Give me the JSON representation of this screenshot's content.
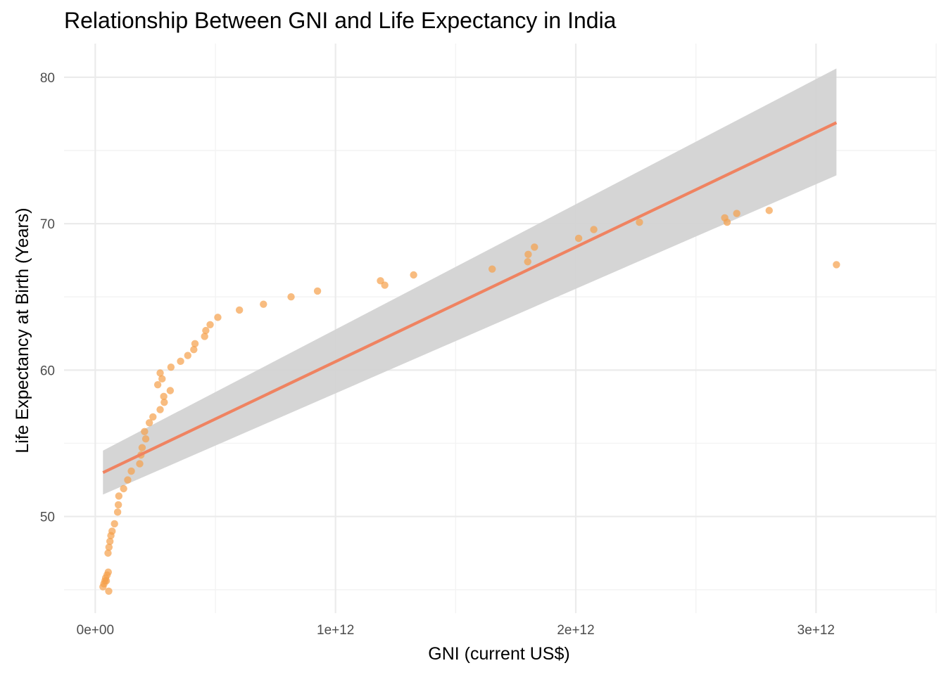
{
  "chart_data": {
    "type": "scatter",
    "title": "Relationship Between GNI and Life Expectancy in India",
    "xlabel": "GNI (current US$)",
    "ylabel": "Life Expectancy at Birth (Years)",
    "xlim": [
      -130000000000.0,
      3500000000000.0
    ],
    "ylim": [
      43.4,
      82.3
    ],
    "x_ticks": [
      {
        "value": 0,
        "label": "0e+00"
      },
      {
        "value": 1000000000000.0,
        "label": "1e+12"
      },
      {
        "value": 2000000000000.0,
        "label": "2e+12"
      },
      {
        "value": 3000000000000.0,
        "label": "3e+12"
      }
    ],
    "x_minor": [
      500000000000.0,
      1500000000000.0,
      2500000000000.0,
      3500000000000.0
    ],
    "y_ticks": [
      {
        "value": 50,
        "label": "50"
      },
      {
        "value": 60,
        "label": "60"
      },
      {
        "value": 70,
        "label": "70"
      },
      {
        "value": 80,
        "label": "80"
      }
    ],
    "y_minor": [
      45,
      55,
      65,
      75
    ],
    "grid": true,
    "colors": {
      "point": "#f5a04a",
      "trend": "#ef8361",
      "band": "#d3d3d3"
    },
    "points": [
      {
        "x": 32000000000.0,
        "y": 45.2
      },
      {
        "x": 36000000000.0,
        "y": 45.4
      },
      {
        "x": 40000000000.0,
        "y": 45.6
      },
      {
        "x": 43000000000.0,
        "y": 45.8
      },
      {
        "x": 46000000000.0,
        "y": 45.6
      },
      {
        "x": 49000000000.0,
        "y": 46.0
      },
      {
        "x": 53000000000.0,
        "y": 47.5
      },
      {
        "x": 54000000000.0,
        "y": 46.2
      },
      {
        "x": 56000000000.0,
        "y": 44.9
      },
      {
        "x": 57000000000.0,
        "y": 47.9
      },
      {
        "x": 61000000000.0,
        "y": 48.3
      },
      {
        "x": 65000000000.0,
        "y": 48.7
      },
      {
        "x": 70000000000.0,
        "y": 49.0
      },
      {
        "x": 80000000000.0,
        "y": 49.5
      },
      {
        "x": 93000000000.0,
        "y": 50.3
      },
      {
        "x": 96000000000.0,
        "y": 50.8
      },
      {
        "x": 98000000000.0,
        "y": 51.4
      },
      {
        "x": 118000000000.0,
        "y": 51.9
      },
      {
        "x": 135000000000.0,
        "y": 52.5
      },
      {
        "x": 150000000000.0,
        "y": 53.1
      },
      {
        "x": 185000000000.0,
        "y": 53.6
      },
      {
        "x": 190000000000.0,
        "y": 54.2
      },
      {
        "x": 195000000000.0,
        "y": 54.7
      },
      {
        "x": 205000000000.0,
        "y": 55.8
      },
      {
        "x": 210000000000.0,
        "y": 55.3
      },
      {
        "x": 225000000000.0,
        "y": 56.4
      },
      {
        "x": 240000000000.0,
        "y": 56.8
      },
      {
        "x": 260000000000.0,
        "y": 59.0
      },
      {
        "x": 270000000000.0,
        "y": 57.3
      },
      {
        "x": 270000000000.0,
        "y": 59.8
      },
      {
        "x": 278000000000.0,
        "y": 59.4
      },
      {
        "x": 285000000000.0,
        "y": 58.2
      },
      {
        "x": 287000000000.0,
        "y": 57.8
      },
      {
        "x": 315000000000.0,
        "y": 60.2
      },
      {
        "x": 312000000000.0,
        "y": 58.6
      },
      {
        "x": 355000000000.0,
        "y": 60.6
      },
      {
        "x": 385000000000.0,
        "y": 61.0
      },
      {
        "x": 410000000000.0,
        "y": 61.4
      },
      {
        "x": 415000000000.0,
        "y": 61.8
      },
      {
        "x": 455000000000.0,
        "y": 62.3
      },
      {
        "x": 460000000000.0,
        "y": 62.7
      },
      {
        "x": 478000000000.0,
        "y": 63.1
      },
      {
        "x": 510000000000.0,
        "y": 63.6
      },
      {
        "x": 600000000000.0,
        "y": 64.1
      },
      {
        "x": 700000000000.0,
        "y": 64.5
      },
      {
        "x": 815000000000.0,
        "y": 65.0
      },
      {
        "x": 925000000000.0,
        "y": 65.4
      },
      {
        "x": 1187000000000.0,
        "y": 66.1
      },
      {
        "x": 1205000000000.0,
        "y": 65.8
      },
      {
        "x": 1325000000000.0,
        "y": 66.5
      },
      {
        "x": 1652000000000.0,
        "y": 66.9
      },
      {
        "x": 1800000000000.0,
        "y": 67.4
      },
      {
        "x": 1802000000000.0,
        "y": 67.9
      },
      {
        "x": 1828000000000.0,
        "y": 68.4
      },
      {
        "x": 2012000000000.0,
        "y": 69.0
      },
      {
        "x": 2075000000000.0,
        "y": 69.6
      },
      {
        "x": 2265000000000.0,
        "y": 70.1
      },
      {
        "x": 2620000000000.0,
        "y": 70.4
      },
      {
        "x": 2630000000000.0,
        "y": 70.1
      },
      {
        "x": 2670000000000.0,
        "y": 70.7
      },
      {
        "x": 2805000000000.0,
        "y": 70.9
      },
      {
        "x": 3085000000000.0,
        "y": 67.2
      }
    ],
    "trend": {
      "x_start": 32000000000.0,
      "y_start": 53.0,
      "x_end": 3085000000000.0,
      "y_end": 76.9,
      "band_start": [
        51.5,
        54.5
      ],
      "band_end": [
        73.3,
        80.6
      ]
    }
  }
}
